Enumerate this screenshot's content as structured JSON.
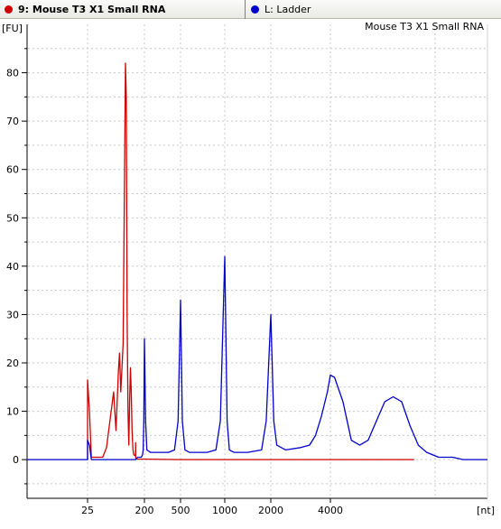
{
  "legend": {
    "items": [
      {
        "label": "9: Mouse T3 X1 Small RNA",
        "color": "#cc0000"
      },
      {
        "label": "L: Ladder",
        "color": "#0000cc"
      }
    ]
  },
  "chart_data": {
    "type": "line",
    "title": "Mouse T3 X1 Small RNA",
    "ylabel": "[FU]",
    "xlabel": "[nt]",
    "ylim": [
      -8,
      90
    ],
    "y_ticks": [
      0,
      10,
      20,
      30,
      40,
      50,
      60,
      70,
      80
    ],
    "x_ticks": [
      "25",
      "200",
      "500",
      "1000",
      "2000",
      "4000"
    ],
    "grid": true,
    "series": [
      {
        "name": "9: Mouse T3 X1 Small RNA",
        "color": "#cc0000",
        "points": [
          [
            25,
            0
          ],
          [
            25,
            16.5
          ],
          [
            26,
            10
          ],
          [
            27,
            0.5
          ],
          [
            33,
            0.5
          ],
          [
            35,
            2.5
          ],
          [
            38,
            14
          ],
          [
            39,
            6
          ],
          [
            40,
            18
          ],
          [
            40.5,
            22
          ],
          [
            41,
            14
          ],
          [
            42,
            24
          ],
          [
            43,
            82
          ],
          [
            44,
            75
          ],
          [
            45,
            30
          ],
          [
            46,
            10
          ],
          [
            47,
            3
          ],
          [
            48,
            12
          ],
          [
            49,
            19
          ],
          [
            50,
            14
          ],
          [
            51,
            6
          ],
          [
            52,
            2
          ],
          [
            53,
            1
          ],
          [
            55,
            0.8
          ],
          [
            57,
            1.5
          ],
          [
            58,
            3.5
          ],
          [
            59,
            1.5
          ],
          [
            60,
            0.5
          ],
          [
            62,
            0.3
          ],
          [
            70,
            0.2
          ],
          [
            100,
            0.1
          ],
          [
            200,
            0.1
          ],
          [
            500,
            0
          ],
          [
            1000,
            0
          ],
          [
            2000,
            0
          ],
          [
            4000,
            0
          ],
          [
            6000,
            0
          ]
        ]
      },
      {
        "name": "L: Ladder",
        "color": "#0000cc",
        "points": [
          [
            0,
            0
          ],
          [
            24,
            0
          ],
          [
            25,
            0
          ],
          [
            25,
            4
          ],
          [
            26,
            3
          ],
          [
            27,
            0
          ],
          [
            60,
            0
          ],
          [
            90,
            0.5
          ],
          [
            130,
            0.5
          ],
          [
            150,
            0.5
          ],
          [
            170,
            1
          ],
          [
            180,
            2
          ],
          [
            190,
            8
          ],
          [
            200,
            25
          ],
          [
            210,
            8
          ],
          [
            220,
            2
          ],
          [
            250,
            1.5
          ],
          [
            300,
            1.5
          ],
          [
            400,
            1.5
          ],
          [
            450,
            2
          ],
          [
            480,
            8
          ],
          [
            500,
            33
          ],
          [
            520,
            8
          ],
          [
            550,
            2
          ],
          [
            600,
            1.5
          ],
          [
            700,
            1.5
          ],
          [
            800,
            1.5
          ],
          [
            900,
            2
          ],
          [
            950,
            8
          ],
          [
            1000,
            42
          ],
          [
            1050,
            8
          ],
          [
            1100,
            2
          ],
          [
            1200,
            1.5
          ],
          [
            1500,
            1.5
          ],
          [
            1800,
            2
          ],
          [
            1900,
            8
          ],
          [
            2000,
            30
          ],
          [
            2100,
            8
          ],
          [
            2200,
            3
          ],
          [
            2500,
            2
          ],
          [
            3000,
            2.5
          ],
          [
            3300,
            3
          ],
          [
            3500,
            5
          ],
          [
            3700,
            9
          ],
          [
            3900,
            14
          ],
          [
            4000,
            17.5
          ],
          [
            4100,
            17
          ],
          [
            4300,
            12
          ],
          [
            4500,
            4
          ],
          [
            4700,
            3
          ],
          [
            4900,
            4
          ],
          [
            5100,
            8
          ],
          [
            5300,
            12
          ],
          [
            5500,
            13
          ],
          [
            5700,
            12
          ],
          [
            5900,
            7
          ],
          [
            6100,
            3
          ],
          [
            6300,
            1.5
          ],
          [
            6600,
            0.5
          ],
          [
            7000,
            0.5
          ],
          [
            7300,
            0
          ],
          [
            8000,
            0
          ]
        ]
      }
    ]
  }
}
